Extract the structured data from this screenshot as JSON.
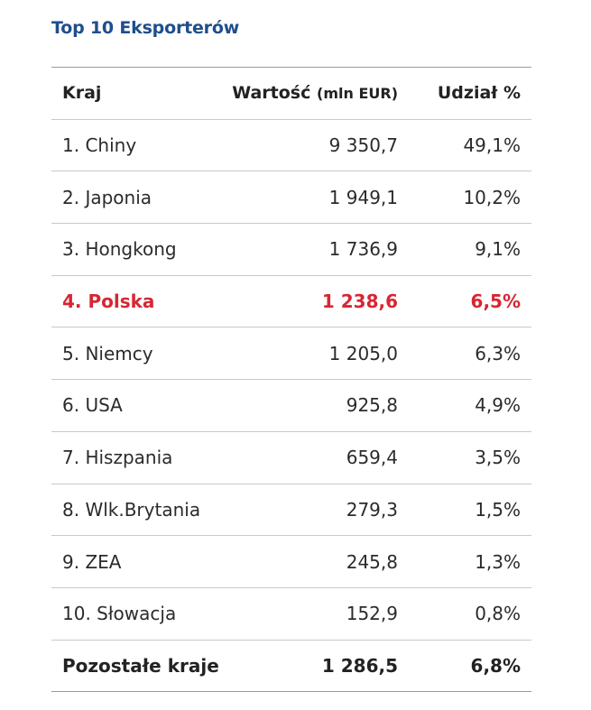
{
  "title": "Top 10 Eksporterów",
  "colors": {
    "title": "#1f4e8c",
    "highlight": "#d72633",
    "rule": "#c9c9c9"
  },
  "table": {
    "headers": {
      "country": "Kraj",
      "value_main": "Wartość",
      "value_unit": "(mln EUR)",
      "share": "Udział %"
    },
    "rows": [
      {
        "country": "1. Chiny",
        "value": "9 350,7",
        "share": "49,1%"
      },
      {
        "country": "2. Japonia",
        "value": "1 949,1",
        "share": "10,2%"
      },
      {
        "country": "3. Hongkong",
        "value": "1 736,9",
        "share": "9,1%"
      },
      {
        "country": "4. Polska",
        "value": "1 238,6",
        "share": "6,5%"
      },
      {
        "country": "5. Niemcy",
        "value": "1 205,0",
        "share": "6,3%"
      },
      {
        "country": "6. USA",
        "value": "925,8",
        "share": "4,9%"
      },
      {
        "country": "7. Hiszpania",
        "value": "659,4",
        "share": "3,5%"
      },
      {
        "country": "8. Wlk.Brytania",
        "value": "279,3",
        "share": "1,5%"
      },
      {
        "country": "9. ZEA",
        "value": "245,8",
        "share": "1,3%"
      },
      {
        "country": "10. Słowacja",
        "value": "152,9",
        "share": "0,8%"
      }
    ],
    "total": {
      "country": "Pozostałe kraje",
      "value": "1 286,5",
      "share": "6,8%"
    }
  }
}
